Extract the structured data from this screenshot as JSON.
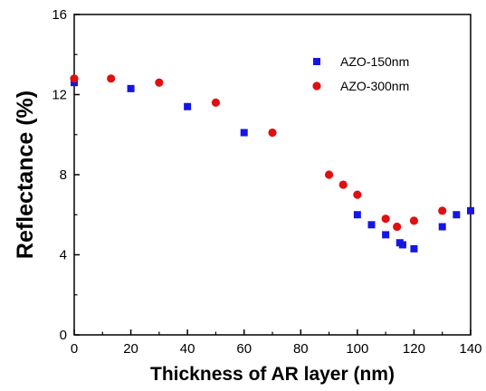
{
  "chart_data": {
    "type": "scatter",
    "title": "",
    "xlabel": "Thickness of AR layer (nm)",
    "ylabel": "Reflectance (%)",
    "xlim": [
      0,
      140
    ],
    "ylim": [
      0,
      16
    ],
    "xticks": [
      0,
      20,
      40,
      60,
      80,
      100,
      120,
      140
    ],
    "yticks": [
      0,
      4,
      8,
      12,
      16
    ],
    "grid": false,
    "legend_position": "top-right",
    "series": [
      {
        "name": "AZO-150nm",
        "marker": "square",
        "color": "#1515e6",
        "x": [
          0,
          20,
          40,
          60,
          100,
          105,
          110,
          115,
          116,
          120,
          130,
          135,
          140
        ],
        "y": [
          12.6,
          12.3,
          11.4,
          10.1,
          6.0,
          5.5,
          5.0,
          4.6,
          4.5,
          4.3,
          5.4,
          6.0,
          6.2
        ]
      },
      {
        "name": "AZO-300nm",
        "marker": "circle",
        "color": "#e01010",
        "x": [
          0,
          13,
          30,
          50,
          70,
          90,
          95,
          100,
          110,
          114,
          120,
          130
        ],
        "y": [
          12.8,
          12.8,
          12.6,
          11.6,
          10.1,
          8.0,
          7.5,
          7.0,
          5.8,
          5.4,
          5.7,
          6.2
        ]
      }
    ]
  }
}
